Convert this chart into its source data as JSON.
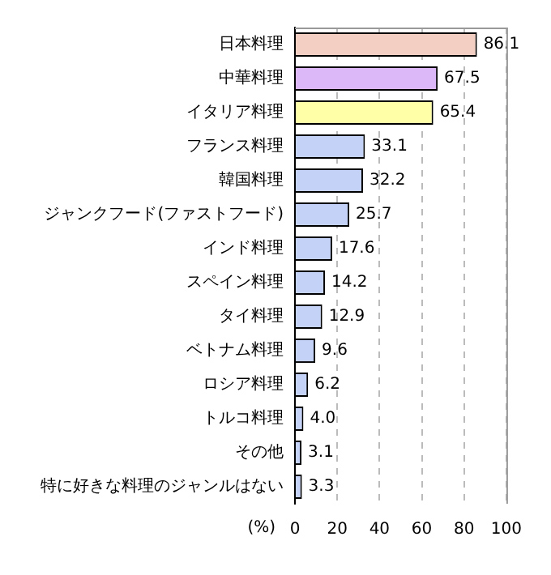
{
  "chart_data": {
    "type": "bar",
    "orientation": "horizontal",
    "xlabel": "(%)",
    "categories": [
      "日本料理",
      "中華料理",
      "イタリア料理",
      "フランス料理",
      "韓国料理",
      "ジャンクフード(ファストフード)",
      "インド料理",
      "スペイン料理",
      "タイ料理",
      "ベトナム料理",
      "ロシア料理",
      "トルコ料理",
      "その他",
      "特に好きな料理のジャンルはない"
    ],
    "values": [
      86.1,
      67.5,
      65.4,
      33.1,
      32.2,
      25.7,
      17.6,
      14.2,
      12.9,
      9.6,
      6.2,
      4.0,
      3.1,
      3.3
    ],
    "value_labels": [
      "86.1",
      "67.5",
      "65.4",
      "33.1",
      "32.2",
      "25.7",
      "17.6",
      "14.2",
      "12.9",
      "9.6",
      "6.2",
      "4.0",
      "3.1",
      "3.3"
    ],
    "colors": [
      "#f2cfc2",
      "#dcb8f8",
      "#ffffa8",
      "#c4d2f8",
      "#c4d2f8",
      "#c4d2f8",
      "#c4d2f8",
      "#c4d2f8",
      "#c4d2f8",
      "#c4d2f8",
      "#c4d2f8",
      "#c4d2f8",
      "#c4d2f8",
      "#c4d2f8"
    ],
    "xlim": [
      0,
      100
    ],
    "xticks": [
      0,
      20,
      40,
      60,
      80,
      100
    ],
    "grid": "x"
  }
}
